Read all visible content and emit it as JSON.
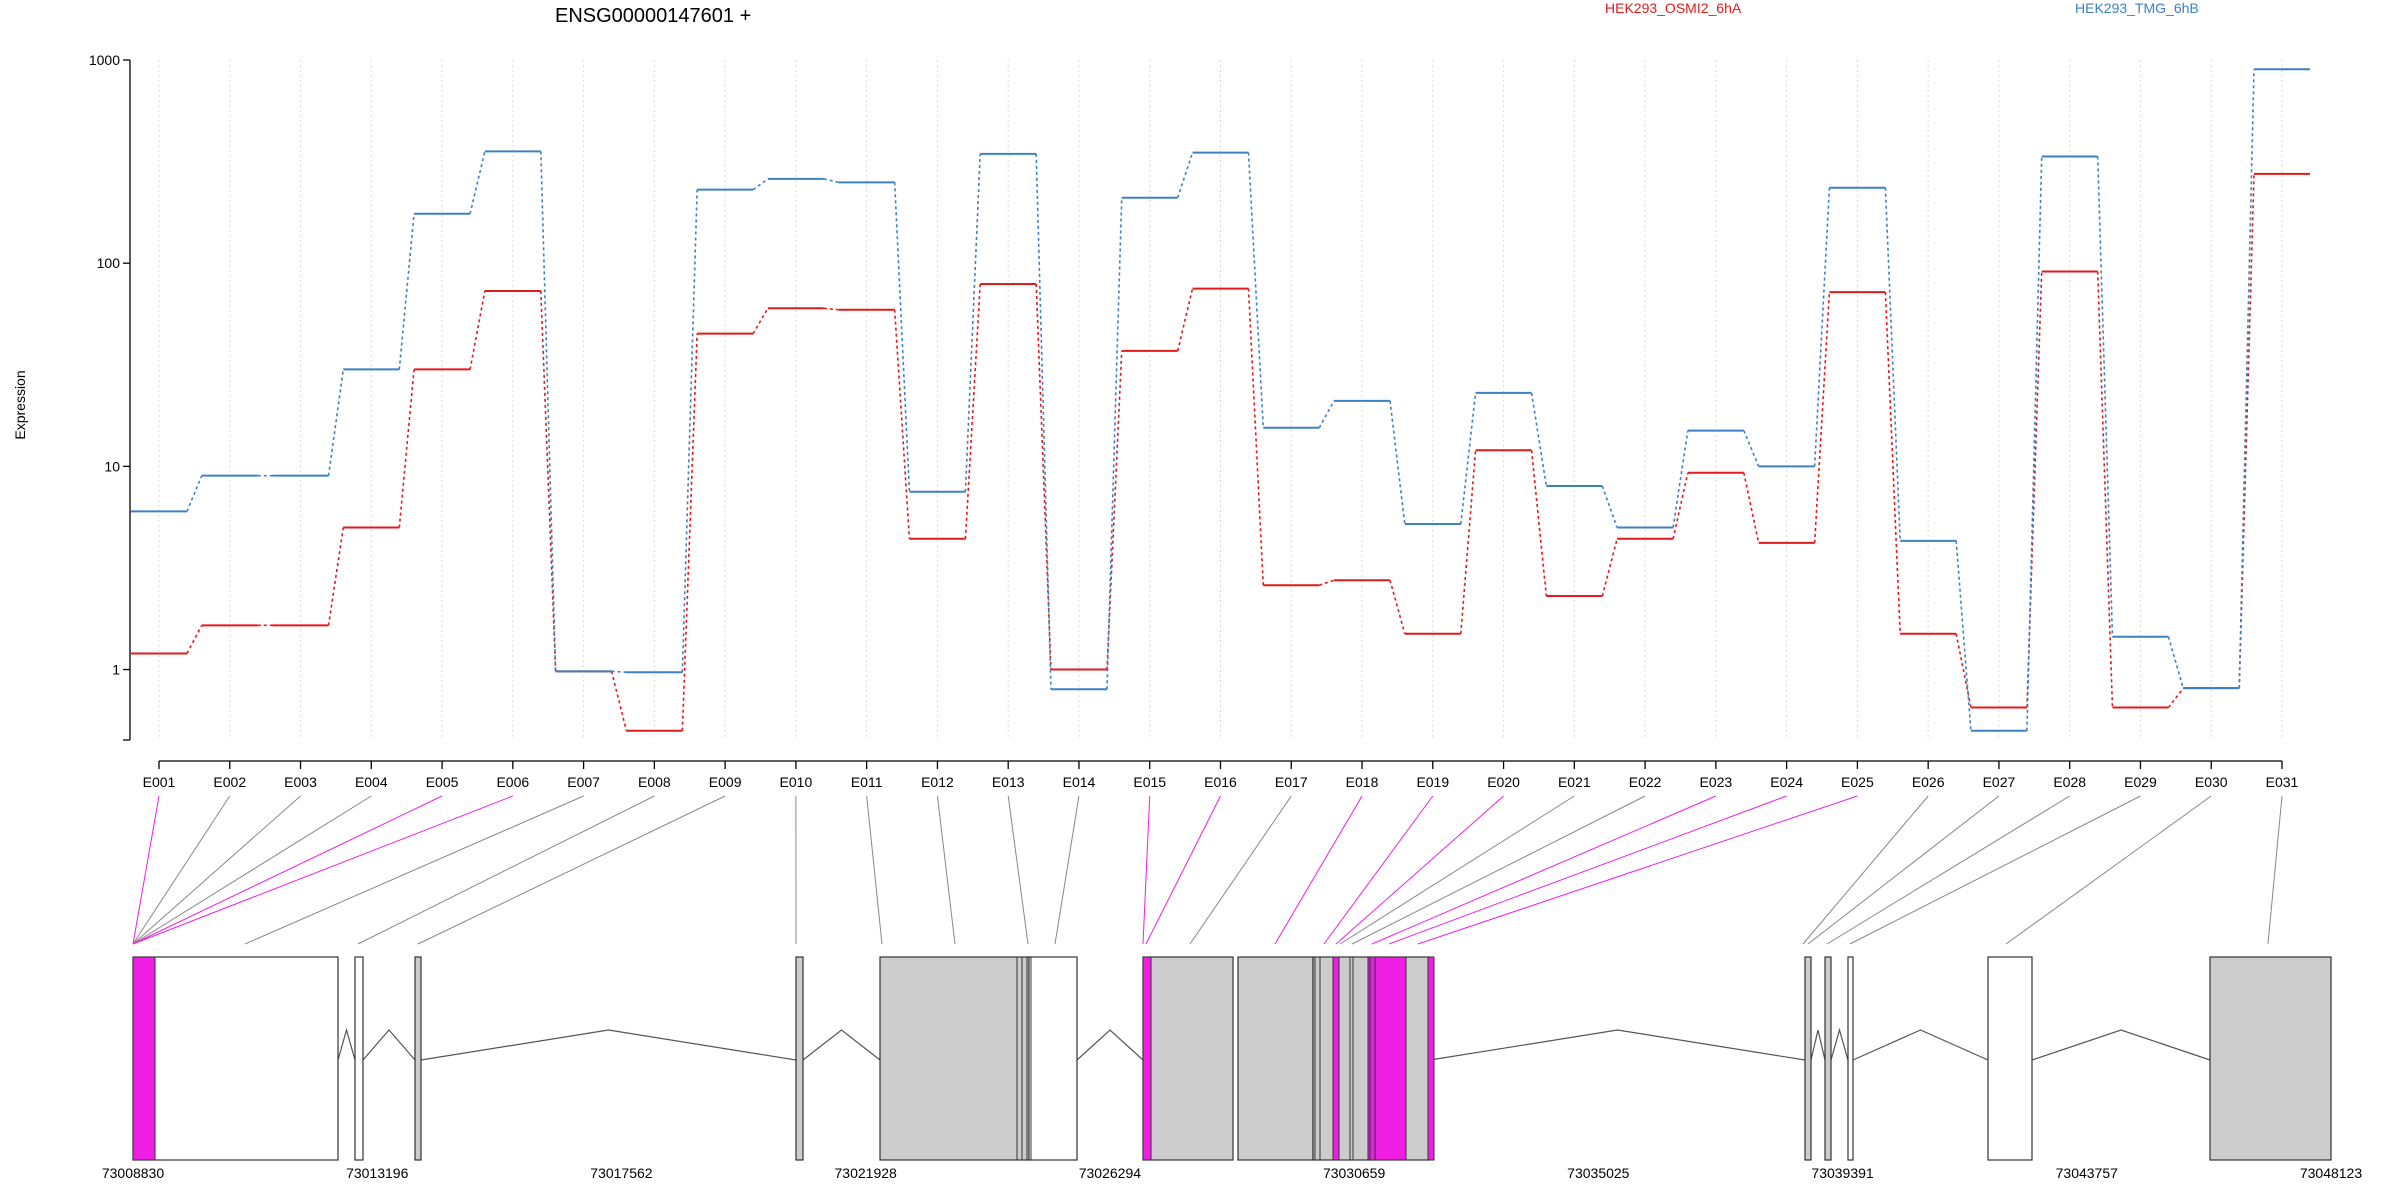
{
  "chart_data": {
    "type": "line",
    "title": "ENSG00000147601 +",
    "ylabel": "Expression",
    "xlabel": "",
    "y_scale": "log",
    "y_ticks": [
      1,
      10,
      100,
      1000
    ],
    "y_tick_labels": [
      "1",
      "10",
      "100",
      "1000"
    ],
    "ylim": [
      0.45,
      1000
    ],
    "grid": "vertical dotted lines at each exon",
    "legend_placement": "top",
    "categories": [
      "E001",
      "E002",
      "E003",
      "E004",
      "E005",
      "E006",
      "E007",
      "E008",
      "E009",
      "E010",
      "E011",
      "E012",
      "E013",
      "E014",
      "E015",
      "E016",
      "E017",
      "E018",
      "E019",
      "E020",
      "E021",
      "E022",
      "E023",
      "E024",
      "E025",
      "E026",
      "E027",
      "E028",
      "E029",
      "E030",
      "E031"
    ],
    "series": [
      {
        "name": "HEK293_OSMI2_6hA",
        "color": "#e31a1c",
        "values": [
          1.2,
          1.65,
          1.65,
          5.0,
          30,
          73,
          0.98,
          0.5,
          45,
          60,
          59,
          4.4,
          79,
          1.0,
          37,
          75,
          2.6,
          2.75,
          1.5,
          12,
          2.3,
          4.4,
          9.3,
          4.2,
          72,
          1.5,
          0.65,
          91,
          0.65,
          0.81,
          275
        ]
      },
      {
        "name": "HEK293_TMG_6hB",
        "color": "#3b82c4",
        "values": [
          6.0,
          9.0,
          9.0,
          30,
          175,
          355,
          0.98,
          0.97,
          230,
          260,
          250,
          7.5,
          345,
          0.8,
          210,
          350,
          15.5,
          21,
          5.2,
          23,
          8.0,
          5.0,
          15,
          10,
          235,
          4.3,
          0.5,
          335,
          1.45,
          0.81,
          900
        ]
      }
    ],
    "highlight_color": "#ee1fe3",
    "highlighted_exons": [
      "E001",
      "E005",
      "E006",
      "E015",
      "E016",
      "E018",
      "E019",
      "E020",
      "E023",
      "E024",
      "E025"
    ],
    "genomic_axis": {
      "tick_labels": [
        "73008830",
        "73013196",
        "73017562",
        "73021928",
        "73026294",
        "73030659",
        "73035025",
        "73039391",
        "73043757",
        "73048123"
      ]
    }
  }
}
